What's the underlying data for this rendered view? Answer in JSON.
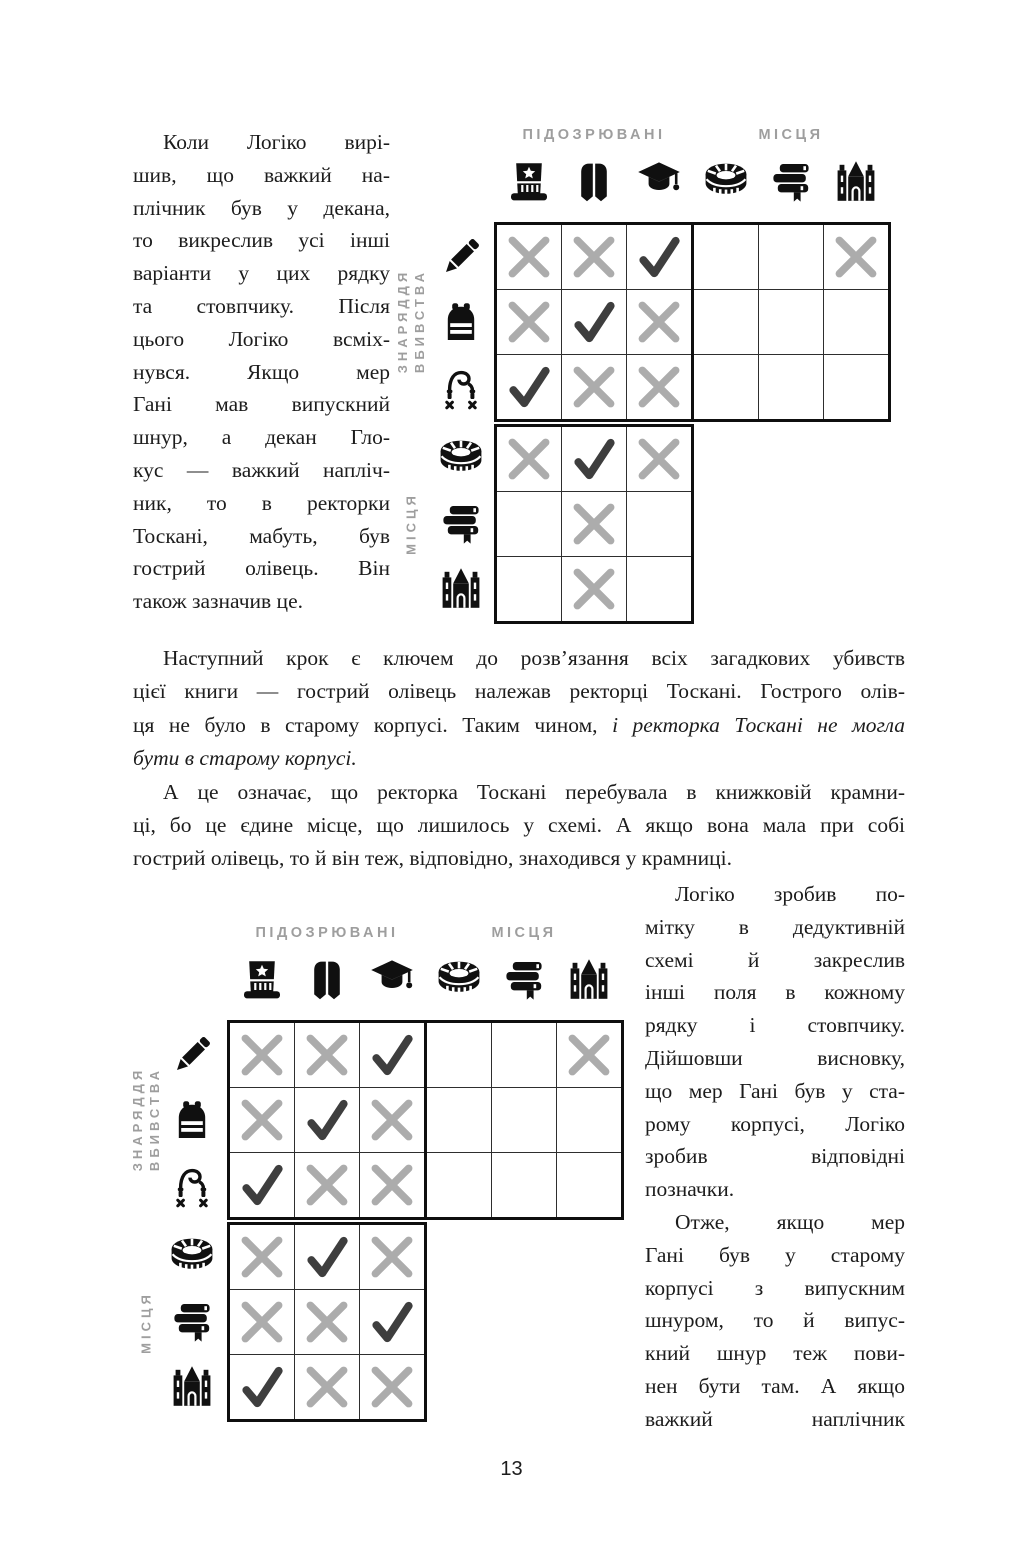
{
  "page_number": "13",
  "grid_labels": {
    "suspects": "ПІДОЗРЮВАНІ",
    "places": "МІСЦЯ",
    "weapons_1": "ЗНАРЯДДЯ",
    "weapons_2": "ВБИВСТВА"
  },
  "icons": {
    "columns": [
      "hat",
      "stole",
      "cap",
      "stadium",
      "books",
      "castle"
    ],
    "rows": [
      "pencil",
      "backpack",
      "rope",
      "stadium",
      "books",
      "castle"
    ]
  },
  "grids": [
    {
      "name": "deduction-grid-top",
      "marks": [
        [
          "x",
          "x",
          "v",
          "",
          "",
          "x"
        ],
        [
          "x",
          "v",
          "x",
          "",
          "",
          ""
        ],
        [
          "v",
          "x",
          "x",
          "",
          "",
          ""
        ],
        [
          "x",
          "v",
          "x"
        ],
        [
          "",
          "x",
          ""
        ],
        [
          "",
          "x",
          ""
        ]
      ]
    },
    {
      "name": "deduction-grid-bottom",
      "marks": [
        [
          "x",
          "x",
          "v",
          "",
          "",
          "x"
        ],
        [
          "x",
          "v",
          "x",
          "",
          "",
          ""
        ],
        [
          "v",
          "x",
          "x",
          "",
          "",
          ""
        ],
        [
          "x",
          "v",
          "x"
        ],
        [
          "x",
          "x",
          "v"
        ],
        [
          "v",
          "x",
          "x"
        ]
      ]
    }
  ],
  "text": {
    "top_left": {
      "lines": [
        {
          "parts": [
            {
              "t": "Коли Логіко вирі-"
            }
          ],
          "indent": 1
        },
        {
          "parts": [
            {
              "t": "шив, що важкий на-"
            }
          ]
        },
        {
          "parts": [
            {
              "t": "плічник був у декана,"
            }
          ]
        },
        {
          "parts": [
            {
              "t": "то викреслив усі інші"
            }
          ]
        },
        {
          "parts": [
            {
              "t": "варіанти у цих рядку"
            }
          ]
        },
        {
          "parts": [
            {
              "t": "та стовпчику. Після"
            }
          ]
        },
        {
          "parts": [
            {
              "t": "цього Логіко всміх-"
            }
          ]
        },
        {
          "parts": [
            {
              "t": "нувся. Якщо мер"
            }
          ]
        },
        {
          "parts": [
            {
              "t": "Гані мав випускний"
            }
          ]
        },
        {
          "parts": [
            {
              "t": "шнур, а декан Гло-"
            }
          ]
        },
        {
          "parts": [
            {
              "t": "кус — важкий напліч-"
            }
          ]
        },
        {
          "parts": [
            {
              "t": "ник, то в ректорки"
            }
          ]
        },
        {
          "parts": [
            {
              "t": "Тоскані, мабуть, був"
            }
          ]
        },
        {
          "parts": [
            {
              "t": "гострий олівець. Він"
            }
          ]
        },
        {
          "parts": [
            {
              "t": "також зазначив це."
            }
          ],
          "last": 1
        }
      ]
    },
    "middle": {
      "lines": [
        {
          "parts": [
            {
              "t": "Наступний крок є ключем до розв’язання всіх загадкових убивств"
            }
          ],
          "indent": 1
        },
        {
          "parts": [
            {
              "t": "цієї книги — гострий олівець належав ректорці Тоскані. Гострого олів-"
            }
          ]
        },
        {
          "parts": [
            {
              "t": "ця не було в старому корпусі. Таким чином, "
            },
            {
              "t": "і ректорка Тоскані не могла",
              "i": 1
            }
          ]
        },
        {
          "parts": [
            {
              "t": "бути в старому корпусі.",
              "i": 1
            }
          ],
          "last": 1
        },
        {
          "parts": [
            {
              "t": "А це означає, що ректорка Тоскані перебувала в книжковій крамни-"
            }
          ],
          "indent": 1
        },
        {
          "parts": [
            {
              "t": "ці, бо це єдине місце, що лишилось у схемі. А якщо вона мала при собі"
            }
          ]
        },
        {
          "parts": [
            {
              "t": "гострий олівець, то й він теж, відповідно, знаходився у крамниці."
            }
          ],
          "last": 1
        }
      ]
    },
    "bottom_right": {
      "lines": [
        {
          "parts": [
            {
              "t": "Логіко зробив по-"
            }
          ],
          "indent": 1
        },
        {
          "parts": [
            {
              "t": "мітку в дедуктивній"
            }
          ]
        },
        {
          "parts": [
            {
              "t": "схемі й закреслив"
            }
          ]
        },
        {
          "parts": [
            {
              "t": "інші поля в кожному"
            }
          ]
        },
        {
          "parts": [
            {
              "t": "рядку і стовпчику."
            }
          ]
        },
        {
          "parts": [
            {
              "t": "Дійшовши висновку,"
            }
          ]
        },
        {
          "parts": [
            {
              "t": "що мер Гані був у ста-"
            }
          ]
        },
        {
          "parts": [
            {
              "t": "рому корпусі, Логіко"
            }
          ]
        },
        {
          "parts": [
            {
              "t": "зробив відповідні"
            }
          ]
        },
        {
          "parts": [
            {
              "t": "позначки."
            }
          ],
          "last": 1
        },
        {
          "parts": [
            {
              "t": "Отже, якщо мер"
            }
          ],
          "indent": 1
        },
        {
          "parts": [
            {
              "t": "Гані був у старому"
            }
          ]
        },
        {
          "parts": [
            {
              "t": "корпусі з випускним"
            }
          ]
        },
        {
          "parts": [
            {
              "t": "шнуром, то й випус-"
            }
          ]
        },
        {
          "parts": [
            {
              "t": "кний шнур теж пови-"
            }
          ]
        },
        {
          "parts": [
            {
              "t": "нен бути там. А якщо"
            }
          ]
        },
        {
          "parts": [
            {
              "t": "важкий наплічник"
            }
          ]
        }
      ]
    }
  },
  "colors": {
    "x_mark": "#ACACAC",
    "check_mark": "#3E3E3E",
    "label_gray": "#9E9E9E",
    "ink": "#101010",
    "text": "#1C1C1C"
  }
}
